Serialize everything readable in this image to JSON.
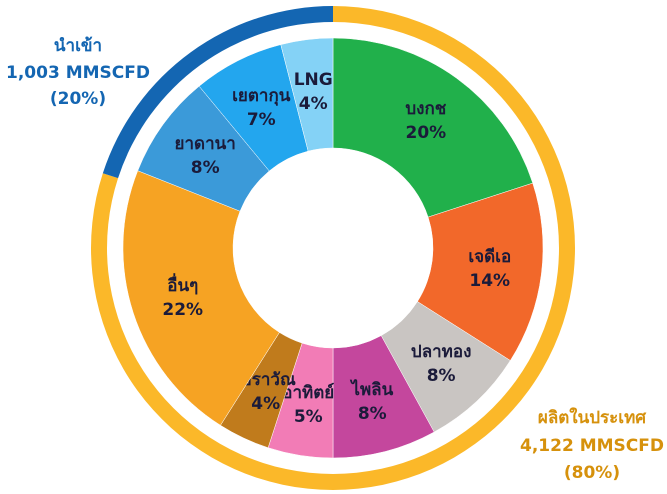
{
  "chart_data": {
    "type": "donut",
    "categories": [
      "บงกช",
      "เจดีเอ",
      "ปลาทอง",
      "ไพลิน",
      "อาทิตย์",
      "เอราวัณ",
      "อื่นๆ",
      "ยาดานา",
      "เยตากุน",
      "LNG"
    ],
    "values": [
      20,
      14,
      8,
      8,
      5,
      4,
      22,
      8,
      7,
      4
    ],
    "value_labels": [
      "20%",
      "14%",
      "8%",
      "8%",
      "5%",
      "4%",
      "22%",
      "8%",
      "7%",
      "4%"
    ],
    "colors": [
      "#21b04b",
      "#f2682a",
      "#c9c5c2",
      "#c4479d",
      "#f27cb6",
      "#c07b1c",
      "#f6a323",
      "#3b9ad9",
      "#23a6ee",
      "#84d2f6"
    ],
    "ring": [
      {
        "name": "ผลิตในประเทศ",
        "volume": 4122,
        "volume_label": "4,122 MMSCFD",
        "value": 80,
        "value_label": "(80%)",
        "color": "#fbb829"
      },
      {
        "name": "นำเข้า",
        "volume": 1003,
        "volume_label": "1,003 MMSCFD",
        "value": 20,
        "value_label": "(20%)",
        "color": "#1466b2"
      }
    ]
  }
}
